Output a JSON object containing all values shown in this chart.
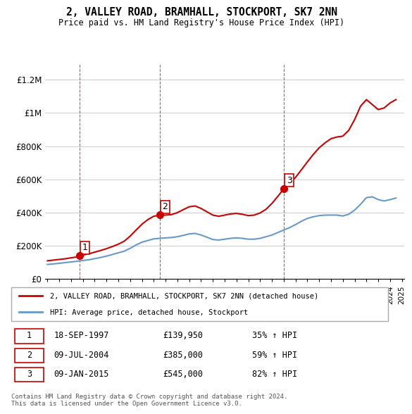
{
  "title": "2, VALLEY ROAD, BRAMHALL, STOCKPORT, SK7 2NN",
  "subtitle": "Price paid vs. HM Land Registry's House Price Index (HPI)",
  "ylim": [
    0,
    1300000
  ],
  "yticks": [
    0,
    200000,
    400000,
    600000,
    800000,
    1000000,
    1200000
  ],
  "ytick_labels": [
    "£0",
    "£200K",
    "£400K",
    "£600K",
    "£800K",
    "£1M",
    "£1.2M"
  ],
  "line_color_red": "#cc0000",
  "line_color_blue": "#6699cc",
  "transactions": [
    {
      "num": 1,
      "date_str": "18-SEP-1997",
      "price": 139950,
      "pct": "35% ↑ HPI",
      "x": 1997.72
    },
    {
      "num": 2,
      "date_str": "09-JUL-2004",
      "price": 385000,
      "pct": "59% ↑ HPI",
      "x": 2004.52
    },
    {
      "num": 3,
      "date_str": "09-JAN-2015",
      "price": 545000,
      "pct": "82% ↑ HPI",
      "x": 2015.03
    }
  ],
  "legend_label_red": "2, VALLEY ROAD, BRAMHALL, STOCKPORT, SK7 2NN (detached house)",
  "legend_label_blue": "HPI: Average price, detached house, Stockport",
  "footer": "Contains HM Land Registry data © Crown copyright and database right 2024.\nThis data is licensed under the Open Government Licence v3.0.",
  "table_rows": [
    [
      "1",
      "18-SEP-1997",
      "£139,950",
      "35% ↑ HPI"
    ],
    [
      "2",
      "09-JUL-2004",
      "£385,000",
      "59% ↑ HPI"
    ],
    [
      "3",
      "09-JAN-2015",
      "£545,000",
      "82% ↑ HPI"
    ]
  ],
  "hpi_x": [
    1995.0,
    1995.5,
    1996.0,
    1996.5,
    1997.0,
    1997.5,
    1998.0,
    1998.5,
    1999.0,
    1999.5,
    2000.0,
    2000.5,
    2001.0,
    2001.5,
    2002.0,
    2002.5,
    2003.0,
    2003.5,
    2004.0,
    2004.5,
    2005.0,
    2005.5,
    2006.0,
    2006.5,
    2007.0,
    2007.5,
    2008.0,
    2008.5,
    2009.0,
    2009.5,
    2010.0,
    2010.5,
    2011.0,
    2011.5,
    2012.0,
    2012.5,
    2013.0,
    2013.5,
    2014.0,
    2014.5,
    2015.0,
    2015.5,
    2016.0,
    2016.5,
    2017.0,
    2017.5,
    2018.0,
    2018.5,
    2019.0,
    2019.5,
    2020.0,
    2020.5,
    2021.0,
    2021.5,
    2022.0,
    2022.5,
    2023.0,
    2023.5,
    2024.0,
    2024.5
  ],
  "hpi_y": [
    88000,
    91000,
    95000,
    99000,
    103000,
    107000,
    112000,
    116000,
    123000,
    130000,
    138000,
    148000,
    158000,
    168000,
    185000,
    205000,
    222000,
    232000,
    242000,
    245000,
    248000,
    250000,
    255000,
    263000,
    272000,
    275000,
    265000,
    252000,
    238000,
    235000,
    240000,
    245000,
    248000,
    245000,
    240000,
    240000,
    245000,
    255000,
    265000,
    280000,
    295000,
    310000,
    328000,
    348000,
    365000,
    375000,
    382000,
    385000,
    385000,
    385000,
    380000,
    390000,
    415000,
    450000,
    490000,
    495000,
    478000,
    470000,
    478000,
    488000
  ],
  "price_x": [
    1995.0,
    1995.5,
    1996.0,
    1996.5,
    1997.0,
    1997.5,
    1997.72,
    1998.0,
    1998.5,
    1999.0,
    1999.5,
    2000.0,
    2000.5,
    2001.0,
    2001.5,
    2002.0,
    2002.5,
    2003.0,
    2003.5,
    2004.0,
    2004.52,
    2005.0,
    2005.5,
    2006.0,
    2006.5,
    2007.0,
    2007.5,
    2008.0,
    2008.5,
    2009.0,
    2009.5,
    2010.0,
    2010.5,
    2011.0,
    2011.5,
    2012.0,
    2012.5,
    2013.0,
    2013.5,
    2014.0,
    2014.5,
    2015.03,
    2015.5,
    2016.0,
    2016.5,
    2017.0,
    2017.5,
    2018.0,
    2018.5,
    2019.0,
    2019.5,
    2020.0,
    2020.5,
    2021.0,
    2021.5,
    2022.0,
    2022.5,
    2023.0,
    2023.5,
    2024.0,
    2024.5
  ],
  "price_y": [
    110000,
    114000,
    118000,
    122000,
    128000,
    133000,
    139950,
    145000,
    152000,
    162000,
    172000,
    183000,
    196000,
    210000,
    228000,
    258000,
    295000,
    330000,
    358000,
    378000,
    385000,
    385000,
    388000,
    400000,
    418000,
    435000,
    440000,
    425000,
    405000,
    385000,
    378000,
    385000,
    392000,
    395000,
    390000,
    382000,
    385000,
    398000,
    420000,
    455000,
    498000,
    545000,
    575000,
    612000,
    658000,
    705000,
    750000,
    790000,
    820000,
    845000,
    855000,
    860000,
    895000,
    960000,
    1040000,
    1080000,
    1050000,
    1020000,
    1030000,
    1060000,
    1080000
  ]
}
